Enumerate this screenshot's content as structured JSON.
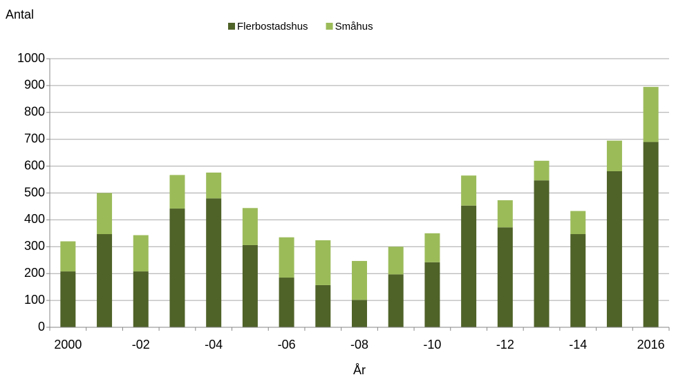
{
  "chart_data": {
    "type": "stacked_bar",
    "y_label": "Antal",
    "x_label": "År",
    "categories": [
      "2000",
      null,
      "-02",
      null,
      "-04",
      null,
      "-06",
      null,
      "-08",
      null,
      "-10",
      null,
      "-12",
      null,
      "-14",
      null,
      "2016"
    ],
    "series": [
      {
        "name": "Flerbostadshus",
        "color": "#4f6228",
        "values": [
          208,
          347,
          208,
          442,
          480,
          306,
          185,
          157,
          102,
          197,
          242,
          453,
          372,
          547,
          347,
          581,
          690
        ]
      },
      {
        "name": "Småhus",
        "color": "#9bbb59",
        "values": [
          112,
          153,
          135,
          125,
          96,
          138,
          150,
          167,
          145,
          103,
          108,
          112,
          101,
          73,
          86,
          114,
          205
        ]
      }
    ],
    "ylim": [
      0,
      1000
    ],
    "yticks": [
      0,
      100,
      200,
      300,
      400,
      500,
      600,
      700,
      800,
      900,
      1000
    ],
    "grid": true,
    "legend": "top"
  }
}
